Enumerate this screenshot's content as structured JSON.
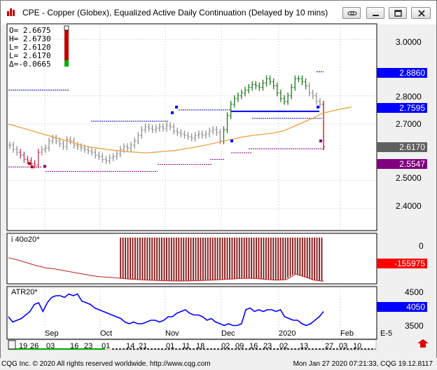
{
  "window": {
    "title": "CPE - Copper (Globex), Equalized Active Daily Continuation (Delayed by 10 mins)"
  },
  "ohlc": {
    "lines": [
      "O= 2.6675",
      "H= 2.6730",
      "L= 2.6120",
      "L= 2.6170",
      "Δ=-0.0665"
    ]
  },
  "price_axis": {
    "ticks": [
      "3.0000",
      "2.8000",
      "2.7000",
      "2.5000",
      "2.4000"
    ],
    "tags": [
      {
        "text": "2.8860",
        "color": "#0000ff"
      },
      {
        "text": "2.7595",
        "color": "#0000ff"
      },
      {
        "text": "2.6170",
        "color": "#606060"
      },
      {
        "text": "2.5547",
        "color": "#800080"
      }
    ]
  },
  "indicator1": {
    "title": "i 40o20*",
    "tick": "0",
    "tag": {
      "text": "-155975",
      "color": "#ff0000"
    }
  },
  "indicator2": {
    "title": "ATR20*",
    "ticks": [
      "4500",
      "3500"
    ],
    "tag": {
      "text": "4050",
      "color": "#0000ff"
    }
  },
  "time_axis": {
    "months": [
      "Sep",
      "Oct",
      "Nov",
      "Dec",
      "2020",
      "Feb"
    ],
    "days": [
      "19",
      "26",
      "03",
      "16",
      "23",
      "01",
      "14",
      "21",
      "01",
      "11",
      "18",
      "02",
      "09",
      "16",
      "23",
      "02",
      "13",
      "27",
      "03",
      "10"
    ],
    "corner_label": "E-5"
  },
  "statusbar": {
    "left": "CQG Inc. © 2020 All rights reserved worldwide. http://www.cqg.com",
    "right": "Mon Jan 27 2020 07:21:33, CQG 19.12.8117"
  },
  "icons": {
    "app": "cqg-chart-icon",
    "link": "link-icon",
    "minimize": "minimize-icon",
    "maximize": "maximize-icon",
    "close": "close-icon",
    "scroll": "scroll-arrow-icon"
  },
  "chart_data": {
    "type": "line",
    "title": "CPE - Copper (Globex), Equalized Active Daily Continuation (Delayed by 10 mins)",
    "price_ylim": [
      2.33,
      3.05
    ],
    "last": {
      "open": 2.6675,
      "high": 2.673,
      "low": 2.612,
      "close": 2.617,
      "change": -0.0665
    },
    "closes": [
      2.625,
      2.61,
      2.6,
      2.59,
      2.575,
      2.57,
      2.56,
      2.555,
      2.6,
      2.61,
      2.615,
      2.64,
      2.65,
      2.64,
      2.63,
      2.62,
      2.645,
      2.64,
      2.625,
      2.62,
      2.615,
      2.61,
      2.605,
      2.6,
      2.59,
      2.585,
      2.575,
      2.57,
      2.58,
      2.585,
      2.595,
      2.61,
      2.62,
      2.615,
      2.625,
      2.64,
      2.66,
      2.68,
      2.69,
      2.685,
      2.68,
      2.685,
      2.69,
      2.685,
      2.695,
      2.69,
      2.675,
      2.67,
      2.665,
      2.66,
      2.655,
      2.65,
      2.66,
      2.665,
      2.66,
      2.665,
      2.675,
      2.68,
      2.67,
      2.64,
      2.68,
      2.73,
      2.77,
      2.79,
      2.8,
      2.81,
      2.82,
      2.83,
      2.84,
      2.835,
      2.83,
      2.845,
      2.86,
      2.85,
      2.835,
      2.81,
      2.79,
      2.78,
      2.8,
      2.83,
      2.86,
      2.86,
      2.85,
      2.835,
      2.81,
      2.8,
      2.78,
      2.77,
      2.62
    ],
    "moving_average": [
      2.7,
      2.69,
      2.68,
      2.67,
      2.66,
      2.65,
      2.64,
      2.63,
      2.62,
      2.615,
      2.61,
      2.606,
      2.602,
      2.6,
      2.598,
      2.6,
      2.603,
      2.606,
      2.612,
      2.618,
      2.625,
      2.632,
      2.64,
      2.647,
      2.655,
      2.66,
      2.664,
      2.668,
      2.675,
      2.69,
      2.705,
      2.72,
      2.738,
      2.746,
      2.754,
      2.76
    ],
    "indicator1_values": [
      -72000,
      -80000,
      -90000,
      -100000,
      -108000,
      -112000,
      -118000,
      -124000,
      -130000,
      -136000,
      -140000,
      -142000,
      -145000,
      -148000,
      -150000,
      -152000,
      -153000,
      -154000,
      -155000,
      -155000,
      -154000,
      -153000,
      -152000,
      -150000,
      -148000,
      -146000,
      -145000,
      -147000,
      -150000,
      -152000,
      -150000,
      -130000,
      -140000,
      -152000,
      -155975
    ],
    "indicator1_ylim": [
      -160000,
      10000
    ],
    "atr_values": [
      3900,
      3750,
      3800,
      3850,
      3950,
      4050,
      4250,
      4300,
      4050,
      4300,
      4450,
      4500,
      4500,
      4450,
      4550,
      4500,
      4550,
      4350,
      4300,
      4250,
      4150,
      4100,
      4050,
      4000,
      3950,
      3900,
      3850,
      3750,
      3700,
      3750,
      3700,
      3700,
      3750,
      3800,
      3800,
      3750,
      3800,
      3900,
      3900,
      4000,
      4050,
      4100,
      4000,
      3950,
      3950,
      3900,
      3800,
      3850,
      3750,
      3700,
      3650,
      3700,
      3650,
      3650,
      3700,
      4100,
      4150,
      4050,
      4100,
      4050,
      4100,
      4100,
      4050,
      4100,
      3900,
      3850,
      3800,
      3800,
      3700,
      3650,
      3700,
      3800,
      3900,
      4050
    ],
    "atr_ylim": [
      3300,
      4700
    ]
  }
}
